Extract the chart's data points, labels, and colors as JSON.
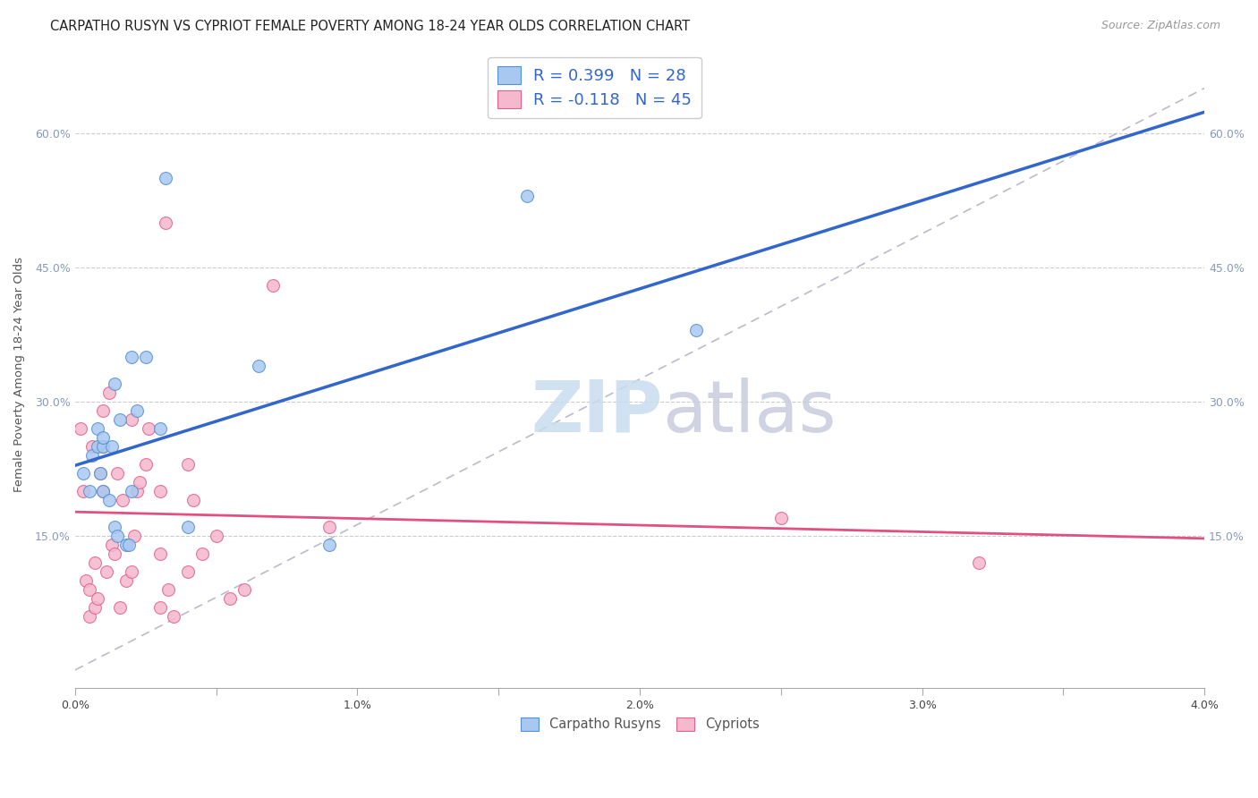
{
  "title": "CARPATHO RUSYN VS CYPRIOT FEMALE POVERTY AMONG 18-24 YEAR OLDS CORRELATION CHART",
  "source": "Source: ZipAtlas.com",
  "ylabel": "Female Poverty Among 18-24 Year Olds",
  "xlim": [
    0,
    0.04
  ],
  "ylim": [
    -0.02,
    0.68
  ],
  "xticks": [
    0,
    0.005,
    0.01,
    0.015,
    0.02,
    0.025,
    0.03,
    0.035,
    0.04
  ],
  "xtick_labels": [
    "0.0%",
    "",
    "1.0%",
    "",
    "2.0%",
    "",
    "3.0%",
    "",
    "4.0%"
  ],
  "yticks": [
    0.15,
    0.3,
    0.45,
    0.6
  ],
  "ytick_labels": [
    "15.0%",
    "30.0%",
    "45.0%",
    "60.0%"
  ],
  "watermark_zip": "ZIP",
  "watermark_atlas": "atlas",
  "blue_fill": "#A8C8F0",
  "blue_edge": "#5590D0",
  "pink_fill": "#F5B8CC",
  "pink_edge": "#E06090",
  "blue_line": "#3366CC",
  "pink_line": "#E05080",
  "dash_color": "#BBBBCC",
  "grid_color": "#CCCCCC",
  "tick_color": "#8899BB",
  "carpatho_x": [
    0.0003,
    0.0005,
    0.0006,
    0.0008,
    0.0008,
    0.0009,
    0.001,
    0.001,
    0.001,
    0.0012,
    0.0013,
    0.0014,
    0.0014,
    0.0015,
    0.0016,
    0.0018,
    0.0019,
    0.002,
    0.002,
    0.0022,
    0.0025,
    0.003,
    0.0032,
    0.004,
    0.0065,
    0.009,
    0.016,
    0.022
  ],
  "carpatho_y": [
    0.22,
    0.2,
    0.24,
    0.25,
    0.27,
    0.22,
    0.2,
    0.25,
    0.26,
    0.19,
    0.25,
    0.32,
    0.16,
    0.15,
    0.28,
    0.14,
    0.14,
    0.2,
    0.35,
    0.29,
    0.35,
    0.27,
    0.55,
    0.16,
    0.34,
    0.14,
    0.53,
    0.38
  ],
  "cypriot_x": [
    0.0002,
    0.0003,
    0.0004,
    0.0005,
    0.0005,
    0.0006,
    0.0007,
    0.0007,
    0.0008,
    0.0009,
    0.001,
    0.001,
    0.001,
    0.0011,
    0.0012,
    0.0013,
    0.0014,
    0.0015,
    0.0016,
    0.0017,
    0.0018,
    0.002,
    0.002,
    0.0021,
    0.0022,
    0.0023,
    0.0025,
    0.0026,
    0.003,
    0.003,
    0.003,
    0.0032,
    0.0033,
    0.0035,
    0.004,
    0.004,
    0.0042,
    0.0045,
    0.005,
    0.0055,
    0.006,
    0.007,
    0.009,
    0.025,
    0.032
  ],
  "cypriot_y": [
    0.27,
    0.2,
    0.1,
    0.09,
    0.06,
    0.25,
    0.07,
    0.12,
    0.08,
    0.22,
    0.2,
    0.25,
    0.29,
    0.11,
    0.31,
    0.14,
    0.13,
    0.22,
    0.07,
    0.19,
    0.1,
    0.28,
    0.11,
    0.15,
    0.2,
    0.21,
    0.23,
    0.27,
    0.07,
    0.13,
    0.2,
    0.5,
    0.09,
    0.06,
    0.23,
    0.11,
    0.19,
    0.13,
    0.15,
    0.08,
    0.09,
    0.43,
    0.16,
    0.17,
    0.12
  ],
  "title_fontsize": 10.5,
  "label_fontsize": 9.5,
  "tick_fontsize": 9,
  "marker_size": 100
}
